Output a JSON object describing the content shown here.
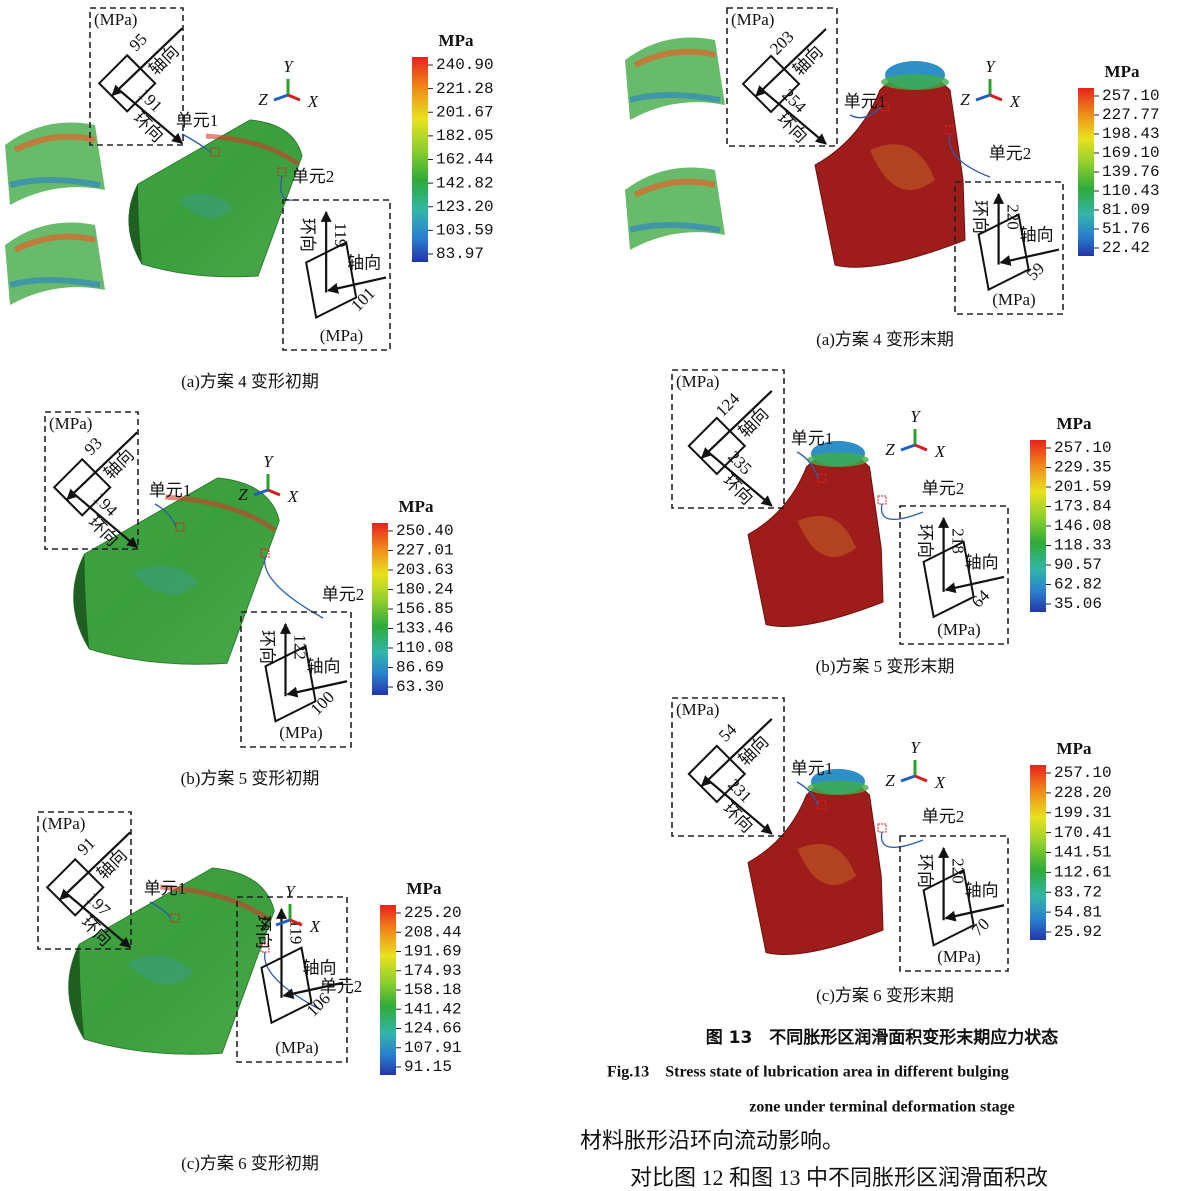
{
  "panels": [
    {
      "caption": "(a)方案 4 变形初期",
      "legend_title": "MPa",
      "legend": [
        "240.90",
        "221.28",
        "201.67",
        "182.05",
        "162.44",
        "142.82",
        "123.20",
        "103.59",
        "83.97"
      ],
      "axes": {
        "y": "Y",
        "z": "Z",
        "x": "X"
      },
      "unit1": {
        "label": "单元1",
        "unit": "(MPa)",
        "axial": 95,
        "hoop": 191,
        "axial_name": "轴向",
        "hoop_name": "环向"
      },
      "unit2": {
        "label": "单元2",
        "unit": "(MPa)",
        "hoop": 119,
        "axial": 101,
        "axial_name": "轴向",
        "hoop_name": "环向"
      }
    },
    {
      "caption": "(b)方案 5 变形初期",
      "legend_title": "MPa",
      "legend": [
        "250.40",
        "227.01",
        "203.63",
        "180.24",
        "156.85",
        "133.46",
        "110.08",
        "86.69",
        "63.30"
      ],
      "axes": {
        "y": "Y",
        "z": "Z",
        "x": "X"
      },
      "unit1": {
        "label": "单元1",
        "unit": "(MPa)",
        "axial": 93,
        "hoop": 194,
        "axial_name": "轴向",
        "hoop_name": "环向"
      },
      "unit2": {
        "label": "单元2",
        "unit": "(MPa)",
        "hoop": 122,
        "axial": 100,
        "axial_name": "轴向",
        "hoop_name": "环向"
      }
    },
    {
      "caption": "(c)方案 6 变形初期",
      "legend_title": "MPa",
      "legend": [
        "225.20",
        "208.44",
        "191.69",
        "174.93",
        "158.18",
        "141.42",
        "124.66",
        "107.91",
        "91.15"
      ],
      "axes": {
        "y": "Y",
        "z": "Z",
        "x": "X"
      },
      "unit1": {
        "label": "单元1",
        "unit": "(MPa)",
        "axial": 91,
        "hoop": 197,
        "axial_name": "轴向",
        "hoop_name": "环向"
      },
      "unit2": {
        "label": "单元2",
        "unit": "(MPa)",
        "hoop": 119,
        "axial": 106,
        "axial_name": "轴向",
        "hoop_name": "环向"
      }
    },
    {
      "caption": "(a)方案 4 变形末期",
      "legend_title": "MPa",
      "legend": [
        "257.10",
        "227.77",
        "198.43",
        "169.10",
        "139.76",
        "110.43",
        "81.09",
        "51.76",
        "22.42"
      ],
      "axes": {
        "y": "Y",
        "z": "Z",
        "x": "X"
      },
      "unit1": {
        "label": "单元1",
        "unit": "(MPa)",
        "axial": 203,
        "hoop": 254,
        "axial_name": "轴向",
        "hoop_name": "环向"
      },
      "unit2": {
        "label": "单元2",
        "unit": "(MPa)",
        "hoop": 220,
        "axial": 59,
        "axial_name": "轴向",
        "hoop_name": "环向"
      }
    },
    {
      "caption": "(b)方案 5 变形末期",
      "legend_title": "MPa",
      "legend": [
        "257.10",
        "229.35",
        "201.59",
        "173.84",
        "146.08",
        "118.33",
        "90.57",
        "62.82",
        "35.06"
      ],
      "axes": {
        "y": "Y",
        "z": "Z",
        "x": "X"
      },
      "unit1": {
        "label": "单元1",
        "unit": "(MPa)",
        "axial": 124,
        "hoop": 235,
        "axial_name": "轴向",
        "hoop_name": "环向"
      },
      "unit2": {
        "label": "单元2",
        "unit": "(MPa)",
        "hoop": 218,
        "axial": 64,
        "axial_name": "轴向",
        "hoop_name": "环向"
      }
    },
    {
      "caption": "(c)方案 6 变形末期",
      "legend_title": "MPa",
      "legend": [
        "257.10",
        "228.20",
        "199.31",
        "170.41",
        "141.51",
        "112.61",
        "83.72",
        "54.81",
        "25.92"
      ],
      "axes": {
        "y": "Y",
        "z": "Z",
        "x": "X"
      },
      "unit1": {
        "label": "单元1",
        "unit": "(MPa)",
        "axial": 54,
        "hoop": 231,
        "axial_name": "轴向",
        "hoop_name": "环向"
      },
      "unit2": {
        "label": "单元2",
        "unit": "(MPa)",
        "hoop": 220,
        "axial": 70,
        "axial_name": "轴向",
        "hoop_name": "环向"
      }
    }
  ],
  "figure": {
    "title": "图 13　不同胀形区润滑面积变形末期应力状态",
    "title_en_1": "Fig.13　Stress state of lubrication area in different bulging",
    "title_en_2": "zone under terminal deformation stage"
  },
  "body": [
    "材料胀形沿环向流动影响。",
    "对比图 12 和图 13 中不同胀形区润滑面积改"
  ]
}
